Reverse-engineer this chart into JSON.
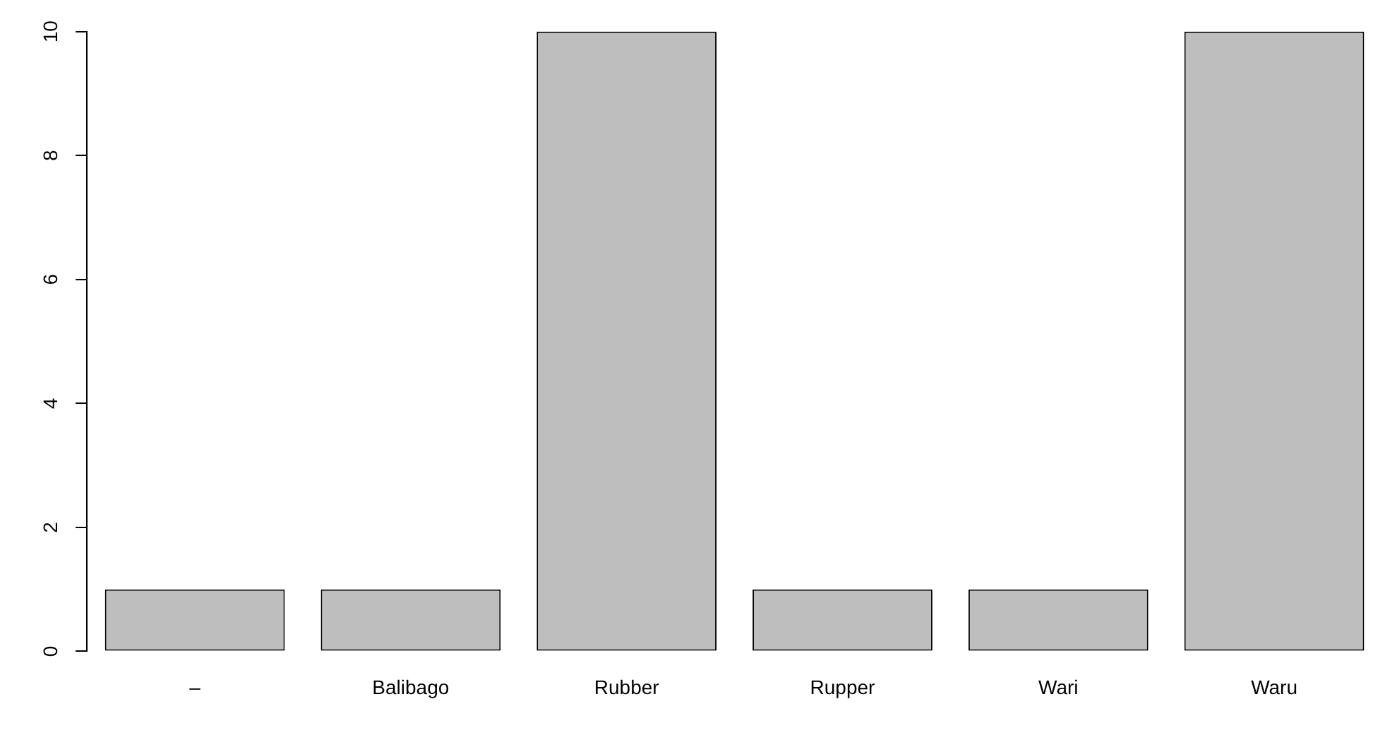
{
  "chart_data": {
    "type": "bar",
    "categories": [
      "–",
      "Balibago",
      "Rubber",
      "Rupper",
      "Wari",
      "Waru"
    ],
    "values": [
      1,
      1,
      10,
      1,
      1,
      10
    ],
    "color": "#bebebe",
    "ylim": [
      0,
      10
    ],
    "yticks": [
      0,
      2,
      4,
      6,
      8,
      10
    ],
    "grid": false,
    "legend": false
  }
}
